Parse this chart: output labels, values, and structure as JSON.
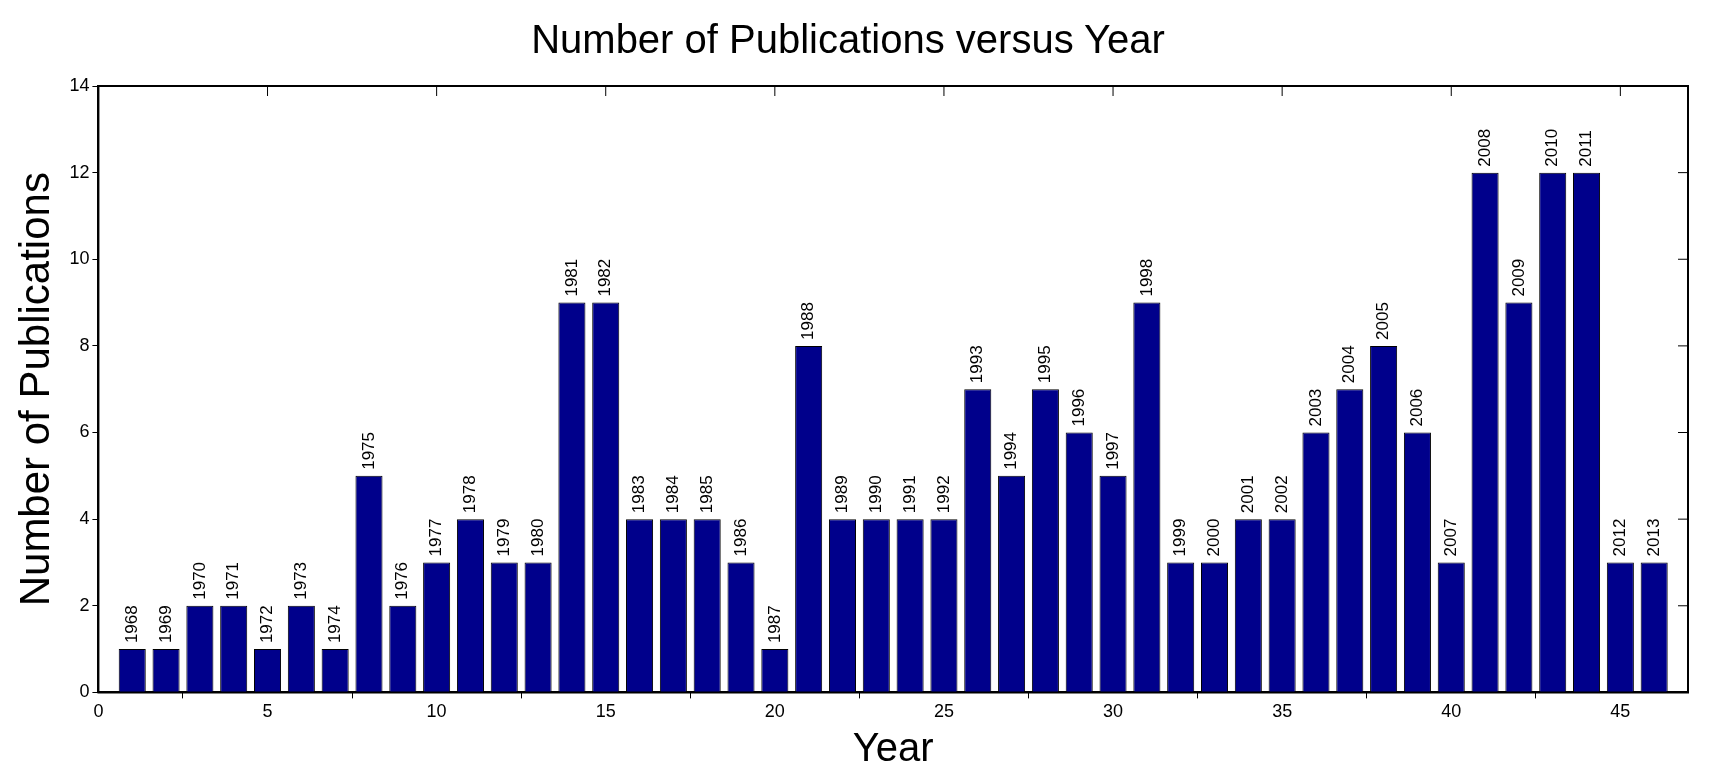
{
  "chart_data": {
    "type": "bar",
    "title": "Number of Publications versus Year",
    "xlabel": "Year",
    "ylabel": "Number of Publications",
    "x": [
      1,
      2,
      3,
      4,
      5,
      6,
      7,
      8,
      9,
      10,
      11,
      12,
      13,
      14,
      15,
      16,
      17,
      18,
      19,
      20,
      21,
      22,
      23,
      24,
      25,
      26,
      27,
      28,
      29,
      30,
      31,
      32,
      33,
      34,
      35,
      36,
      37,
      38,
      39,
      40,
      41,
      42,
      43,
      44,
      45,
      46
    ],
    "values": [
      1,
      1,
      2,
      2,
      1,
      2,
      1,
      5,
      2,
      3,
      4,
      3,
      3,
      9,
      9,
      4,
      4,
      4,
      3,
      1,
      8,
      4,
      4,
      4,
      4,
      7,
      5,
      7,
      6,
      5,
      9,
      3,
      3,
      4,
      4,
      6,
      7,
      8,
      6,
      3,
      12,
      9,
      12,
      12,
      3,
      3
    ],
    "annotations": [
      {
        "text": "1968",
        "x": 1,
        "y": 1
      },
      {
        "text": "1969",
        "x": 2,
        "y": 1
      },
      {
        "text": "1970",
        "x": 3,
        "y": 2
      },
      {
        "text": "1971",
        "x": 4,
        "y": 2
      },
      {
        "text": "1972",
        "x": 5,
        "y": 1
      },
      {
        "text": "1973",
        "x": 6,
        "y": 2
      },
      {
        "text": "1974",
        "x": 7,
        "y": 1
      },
      {
        "text": "1975",
        "x": 8,
        "y": 5
      },
      {
        "text": "1976",
        "x": 9,
        "y": 2
      },
      {
        "text": "1977",
        "x": 10,
        "y": 3
      },
      {
        "text": "1978",
        "x": 11,
        "y": 4
      },
      {
        "text": "1979",
        "x": 12,
        "y": 3
      },
      {
        "text": "1980",
        "x": 13,
        "y": 3
      },
      {
        "text": "1981",
        "x": 14,
        "y": 9
      },
      {
        "text": "1982",
        "x": 15,
        "y": 9
      },
      {
        "text": "1983",
        "x": 16,
        "y": 4
      },
      {
        "text": "1984",
        "x": 17,
        "y": 4
      },
      {
        "text": "1985",
        "x": 18,
        "y": 4
      },
      {
        "text": "1986",
        "x": 19,
        "y": 3
      },
      {
        "text": "1987",
        "x": 20,
        "y": 1
      },
      {
        "text": "1988",
        "x": 21,
        "y": 8
      },
      {
        "text": "1989",
        "x": 22,
        "y": 4
      },
      {
        "text": "1990",
        "x": 23,
        "y": 4
      },
      {
        "text": "1991",
        "x": 24,
        "y": 4
      },
      {
        "text": "1992",
        "x": 25,
        "y": 4
      },
      {
        "text": "1993",
        "x": 26,
        "y": 7
      },
      {
        "text": "1994",
        "x": 27,
        "y": 5
      },
      {
        "text": "1995",
        "x": 28,
        "y": 7
      },
      {
        "text": "1996",
        "x": 29,
        "y": 6
      },
      {
        "text": "1997",
        "x": 30,
        "y": 5
      },
      {
        "text": "1998",
        "x": 31,
        "y": 9
      },
      {
        "text": "1999",
        "x": 32,
        "y": 3
      },
      {
        "text": "2000",
        "x": 33,
        "y": 3
      },
      {
        "text": "2001",
        "x": 34,
        "y": 4
      },
      {
        "text": "2002",
        "x": 35,
        "y": 4
      },
      {
        "text": "2003",
        "x": 36,
        "y": 6
      },
      {
        "text": "2004",
        "x": 37,
        "y": 7
      },
      {
        "text": "2005",
        "x": 38,
        "y": 8
      },
      {
        "text": "2006",
        "x": 39,
        "y": 6
      },
      {
        "text": "2007",
        "x": 40,
        "y": 3
      },
      {
        "text": "2008",
        "x": 41,
        "y": 12
      },
      {
        "text": "2009",
        "x": 42,
        "y": 9
      },
      {
        "text": "2010",
        "x": 43,
        "y": 12
      },
      {
        "text": "2011",
        "x": 44,
        "y": 12
      },
      {
        "text": "2012",
        "x": 45,
        "y": 3
      },
      {
        "text": "2013",
        "x": 46,
        "y": 3
      }
    ],
    "color": "#00008b",
    "xlim": [
      0,
      47
    ],
    "xticks": [
      0,
      5,
      10,
      15,
      20,
      25,
      30,
      35,
      40,
      45
    ],
    "ylim": [
      0,
      14
    ],
    "yticks": [
      0,
      2,
      4,
      6,
      8,
      10,
      12,
      14
    ]
  }
}
